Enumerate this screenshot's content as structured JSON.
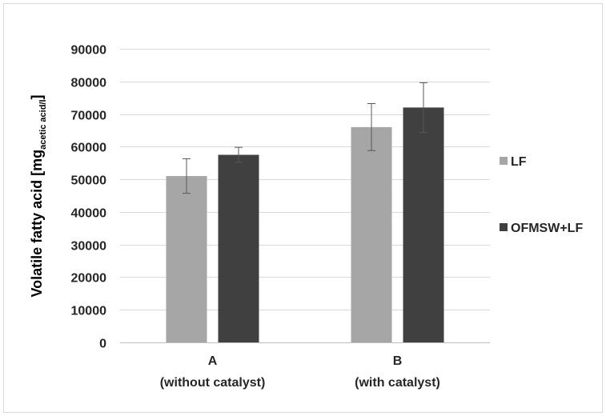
{
  "chart_data": {
    "type": "bar",
    "categories": [
      "A",
      "B"
    ],
    "category_sublabels": [
      "(without catalyst)",
      "(with catalyst)"
    ],
    "series": [
      {
        "name": "LF",
        "values": [
          51000,
          66000
        ],
        "errors": [
          5300,
          7200
        ],
        "color": "#a6a6a6"
      },
      {
        "name": "OFMSW+LF",
        "values": [
          57500,
          72000
        ],
        "errors": [
          2300,
          7600
        ],
        "color": "#404040"
      }
    ],
    "title": "",
    "xlabel": "",
    "ylabel_main": "Volatile fatty acid [mg",
    "ylabel_sub": "acetic acid/l",
    "ylabel_end": "]",
    "ylim": [
      0,
      90000
    ],
    "yticks": [
      0,
      10000,
      20000,
      30000,
      40000,
      50000,
      60000,
      70000,
      80000,
      90000
    ],
    "grid": true,
    "legend_position": "right"
  }
}
